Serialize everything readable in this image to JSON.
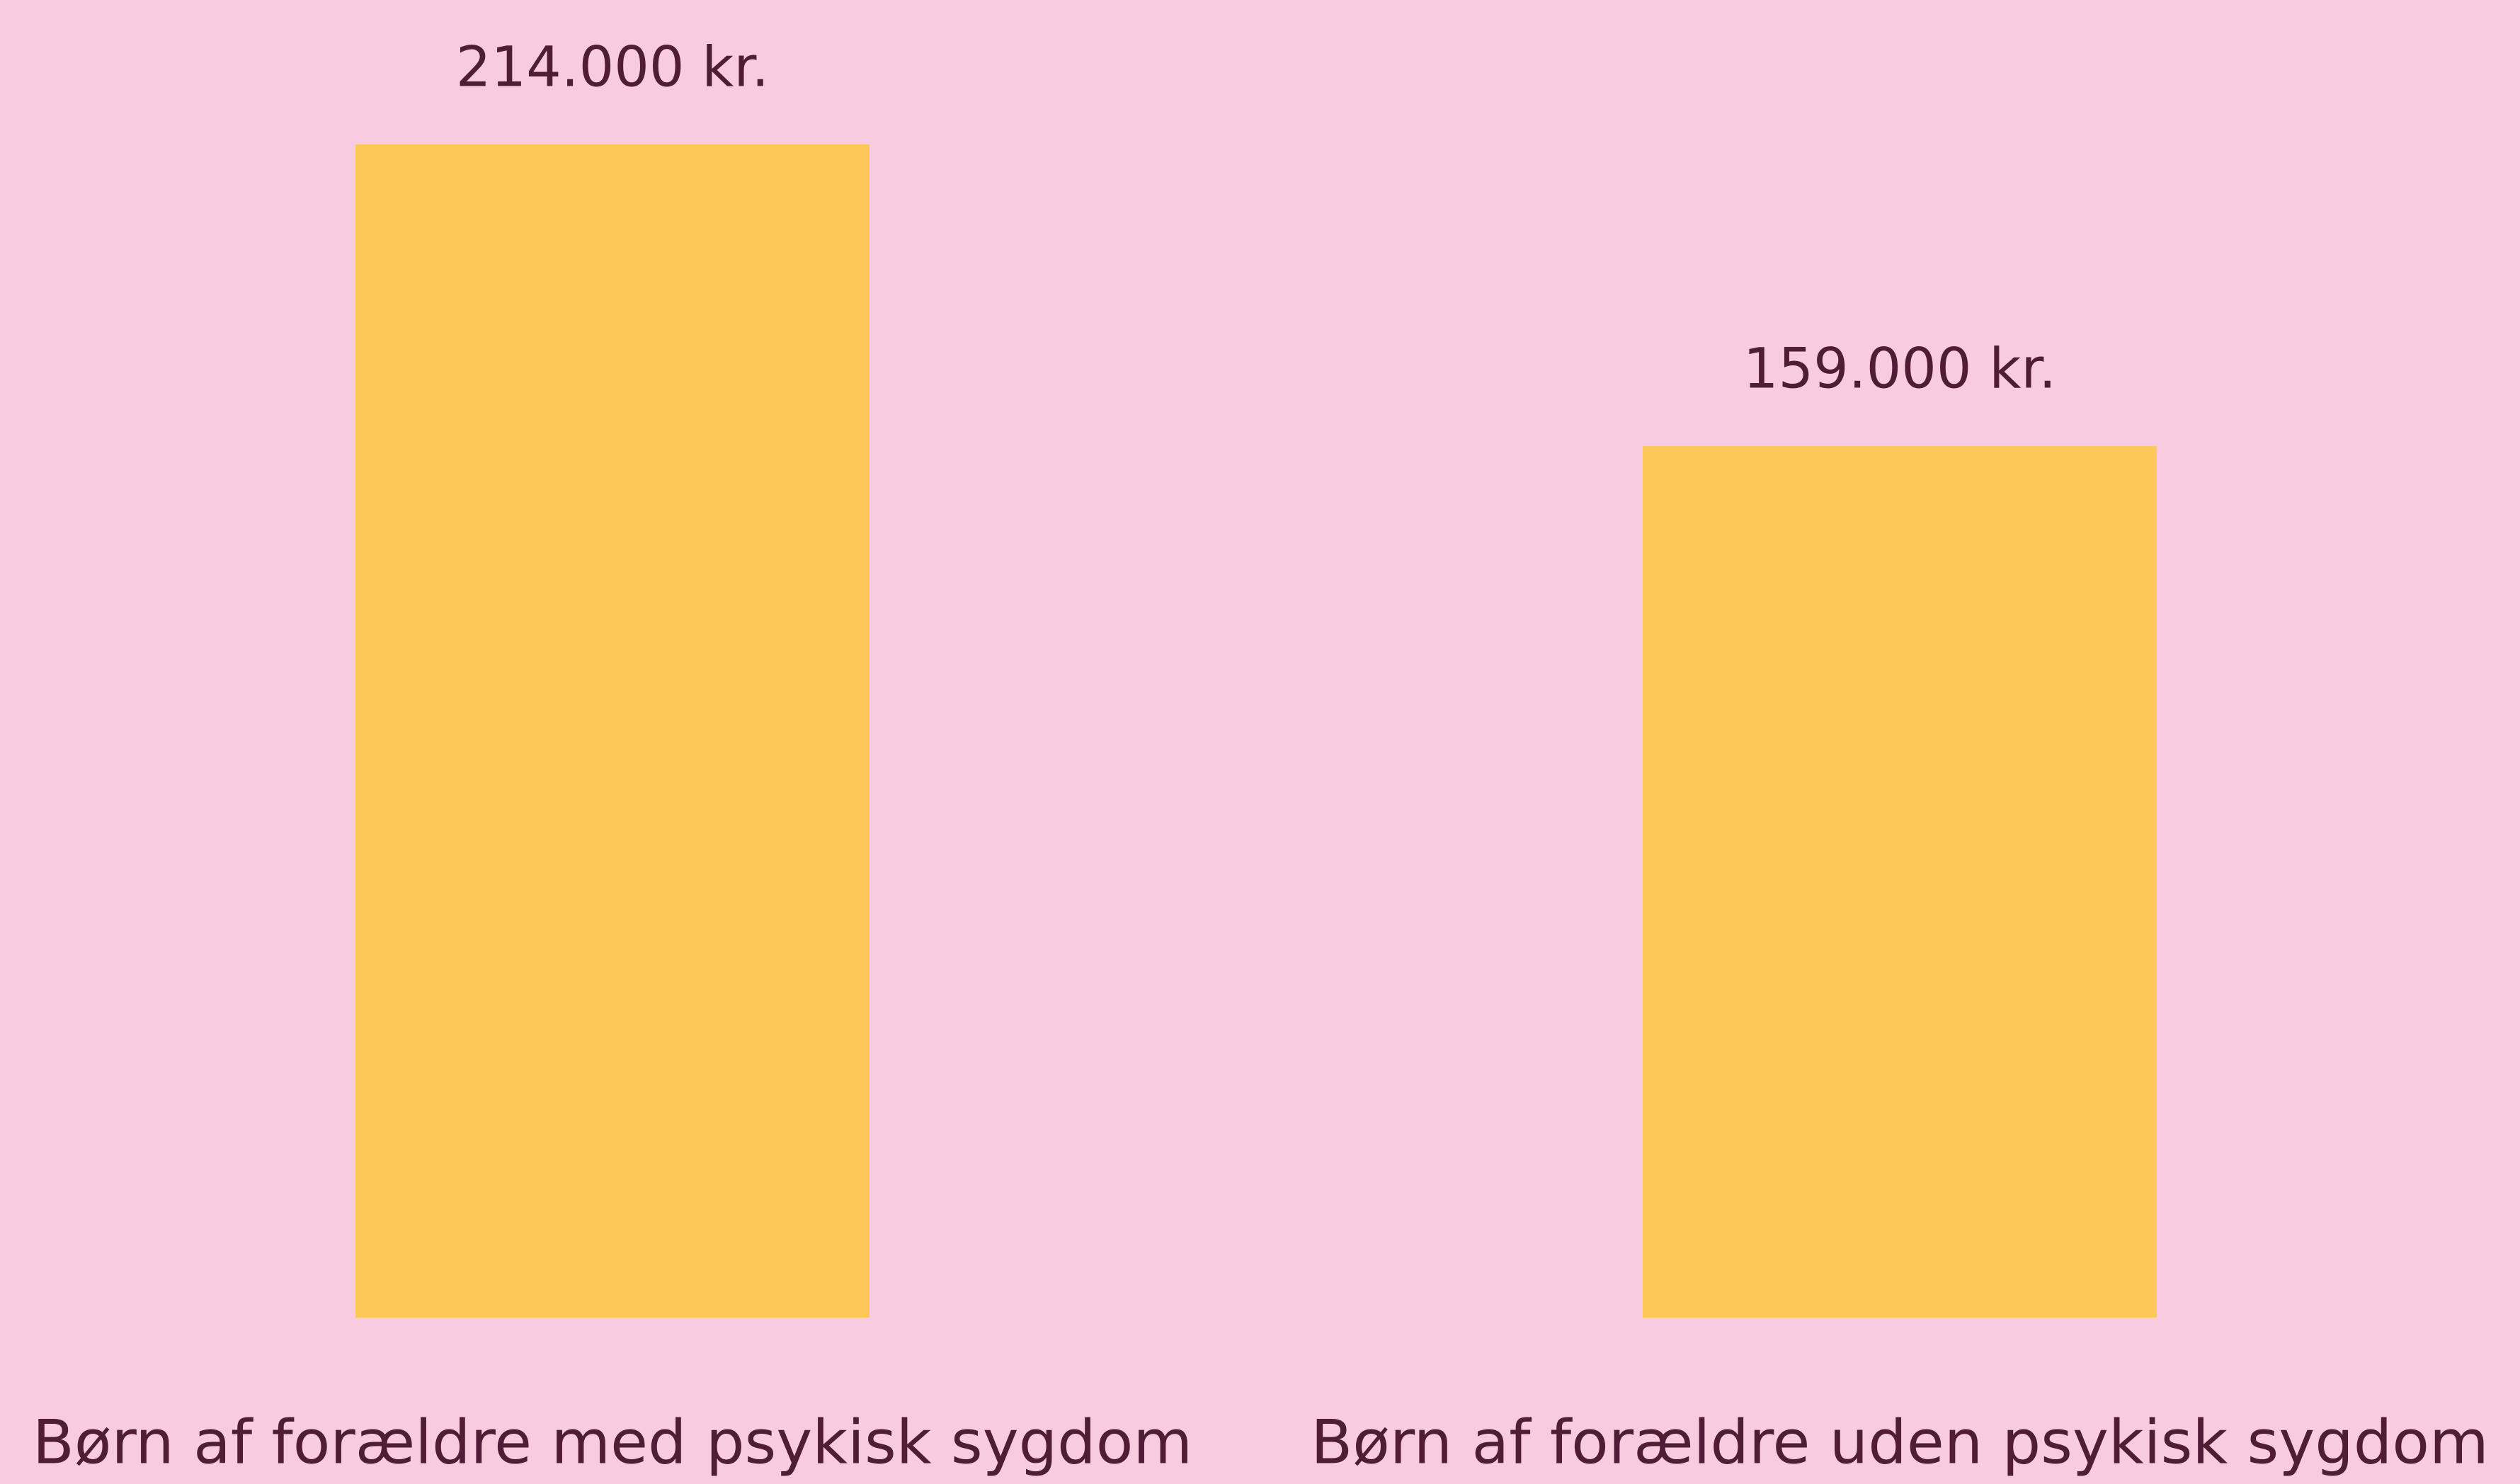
{
  "chart_data": {
    "type": "bar",
    "categories": [
      "Børn af forældre med psykisk sygdom",
      "Børn af forældre uden psykisk sygdom"
    ],
    "values": [
      214000,
      159000
    ],
    "value_labels": [
      "214.000 kr.",
      "159.000 kr."
    ],
    "color": "#fec858"
  }
}
